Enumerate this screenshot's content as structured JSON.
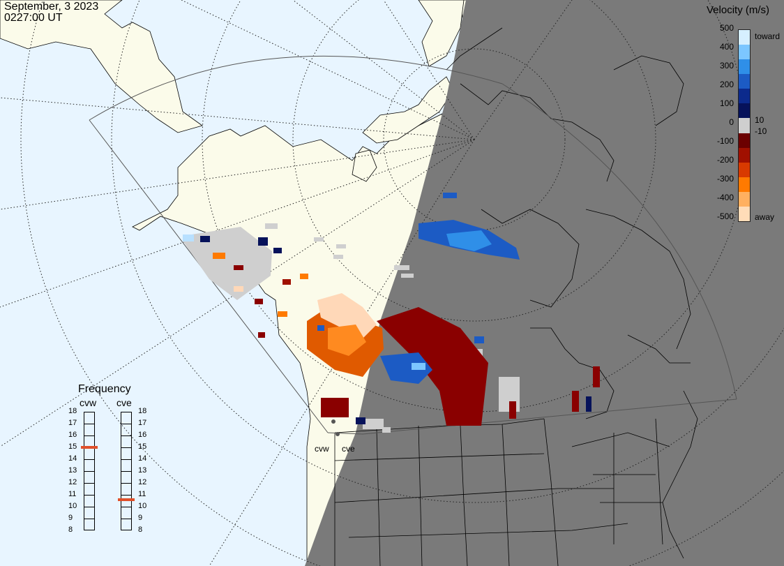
{
  "header": {
    "date": "September, 3 2023",
    "time": "0227:00 UT"
  },
  "colorbar": {
    "title": "Velocity (m/s)",
    "positive_ticks": [
      "500",
      "400",
      "300",
      "200",
      "100",
      "10",
      "0"
    ],
    "negative_ticks": [
      "-10",
      "-100",
      "-200",
      "-300",
      "-400",
      "-500"
    ],
    "toward_label": "toward",
    "away_label": "away",
    "colors_toward": [
      "#d6efff",
      "#7cc6ff",
      "#2f8fe8",
      "#1c5bc4",
      "#0c2a8c",
      "#06125a"
    ],
    "colors_away": [
      "#6b0000",
      "#a01000",
      "#d83a00",
      "#ff7a00",
      "#ffb060",
      "#ffdcb8"
    ],
    "ground_scatter_color": "#cfcfcf"
  },
  "frequency": {
    "title": "Frequency",
    "radars": [
      {
        "name": "cvw",
        "value_mhz": 15
      },
      {
        "name": "cve",
        "value_mhz": 10.6
      }
    ],
    "ticks": [
      "18",
      "17",
      "16",
      "15",
      "14",
      "13",
      "12",
      "11",
      "10",
      "9",
      "8"
    ],
    "marker_color": "#e0502a"
  },
  "map": {
    "radar_labels": [
      "cvw",
      "cve"
    ],
    "land_color": "#fbfbea",
    "ocean_color": "#e8f5ff",
    "night_color": "#7a7a7a"
  }
}
